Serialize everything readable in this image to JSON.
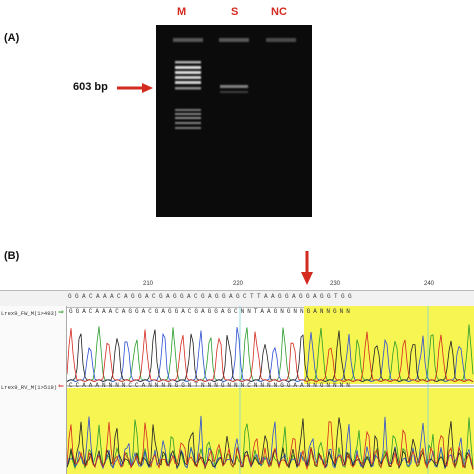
{
  "panel_a": {
    "label": "(A)",
    "lanes": [
      "M",
      "S",
      "NC"
    ],
    "size_marker": "603 bp",
    "colors": {
      "lane_label": "#d42a1f",
      "arrow": "#d42a1f",
      "gel_bg": "#0b0b0b",
      "band": "#e8e8e8"
    }
  },
  "panel_b": {
    "label": "(B)",
    "ruler_ticks": [
      "210",
      "220",
      "230",
      "240"
    ],
    "track_labels": [
      "Lrex9_FW_M(1>493)",
      "Lrex9_RV_M(1>519)"
    ],
    "sequence_top": "GGACAAACAGGACGAGGACGAGGAGCTTAAGGAGGAGGTGG",
    "sequence_fw": "GGACAAACAGGACGAGGACGAGGAGCNNTAAGNGNNGANNGNN",
    "sequence_rv": "CCAAANNNNCCANNNNGGNTNNNGNNNCNNNNGGAANNGNNNN",
    "colors": {
      "highlight": "#f7f552",
      "arrow": "#d42a1f",
      "A": "#2a9d2a",
      "C": "#2c4fd4",
      "G": "#222222",
      "T": "#d42a1f"
    }
  }
}
